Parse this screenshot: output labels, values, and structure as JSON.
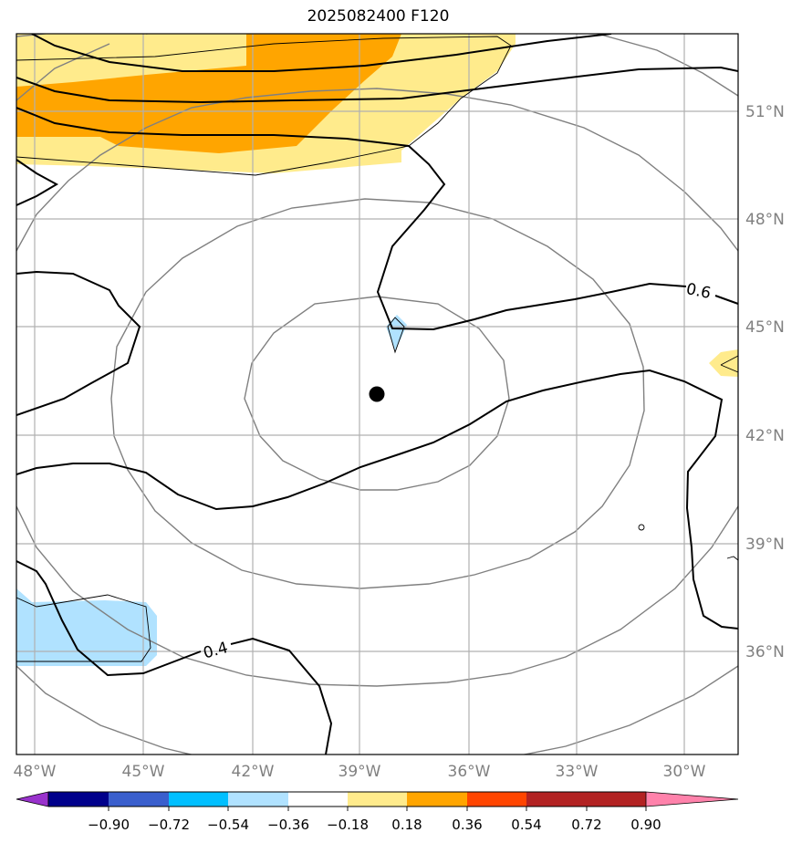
{
  "title": "2025082400 F120",
  "axes": {
    "lon_labels": [
      "48°W",
      "45°W",
      "42°W",
      "39°W",
      "36°W",
      "33°W",
      "30°W"
    ],
    "lat_labels": [
      "51°N",
      "48°N",
      "45°N",
      "42°N",
      "39°N",
      "36°N"
    ]
  },
  "contour_labels": [
    "0.6",
    "0.4"
  ],
  "colorbar": {
    "colors": [
      "#9932cc",
      "#00008b",
      "#3a5fcd",
      "#00bfff",
      "#b0e2ff",
      "#ffffff",
      "#ffeb8c",
      "#ffa500",
      "#ff4500",
      "#b22222",
      "#ff82ab"
    ],
    "tick_labels": [
      "−0.90",
      "−0.72",
      "−0.54",
      "−0.36",
      "−0.18",
      "0.18",
      "0.36",
      "0.54",
      "0.72",
      "0.90"
    ]
  }
}
